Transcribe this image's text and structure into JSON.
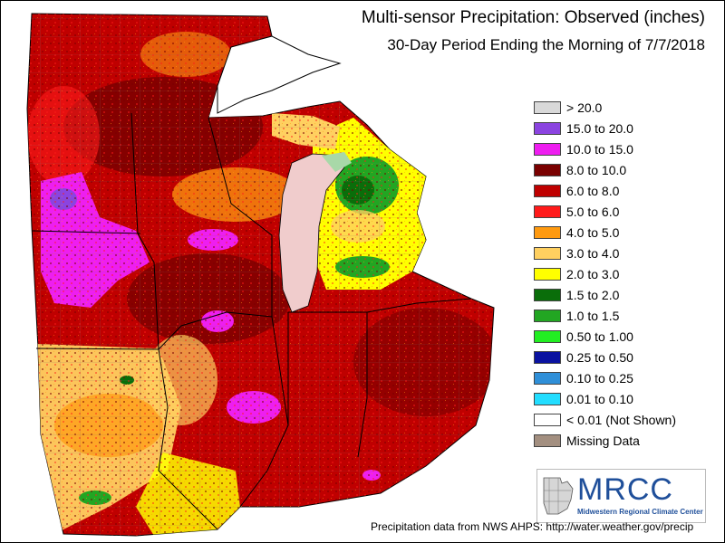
{
  "map": {
    "title": "Multi-sensor Precipitation: Observed (inches)",
    "subtitle": "30-Day Period Ending the Morning of 7/7/2018",
    "footer": "Precipitation data from NWS AHPS: http://water.weather.gov/precip"
  },
  "legend": [
    {
      "label": "> 20.0",
      "color": "#d9d9d9"
    },
    {
      "label": "15.0 to 20.0",
      "color": "#8b44e0"
    },
    {
      "label": "10.0 to 15.0",
      "color": "#ee1ef0"
    },
    {
      "label": "8.0 to 10.0",
      "color": "#7a0000"
    },
    {
      "label": "6.0 to 8.0",
      "color": "#bf0000"
    },
    {
      "label": "5.0 to 6.0",
      "color": "#ff1a1a"
    },
    {
      "label": "4.0 to 5.0",
      "color": "#ff9a10"
    },
    {
      "label": "3.0 to 4.0",
      "color": "#ffd060"
    },
    {
      "label": "2.0 to 3.0",
      "color": "#ffff00"
    },
    {
      "label": "1.5 to 2.0",
      "color": "#0a6e0a"
    },
    {
      "label": "1.0 to 1.5",
      "color": "#22a622"
    },
    {
      "label": "0.50 to 1.00",
      "color": "#22ee22"
    },
    {
      "label": "0.25 to 0.50",
      "color": "#0a12a0"
    },
    {
      "label": "0.10 to 0.25",
      "color": "#2f8fd8"
    },
    {
      "label": "0.01 to 0.10",
      "color": "#22ddff"
    },
    {
      "label": "< 0.01 (Not Shown)",
      "color": "#ffffff"
    },
    {
      "label": "Missing Data",
      "color": "#a38f80"
    }
  ],
  "logo": {
    "name": "MRCC",
    "subtext": "Midwestern Regional Climate Center",
    "color": "#1f4f9a"
  }
}
